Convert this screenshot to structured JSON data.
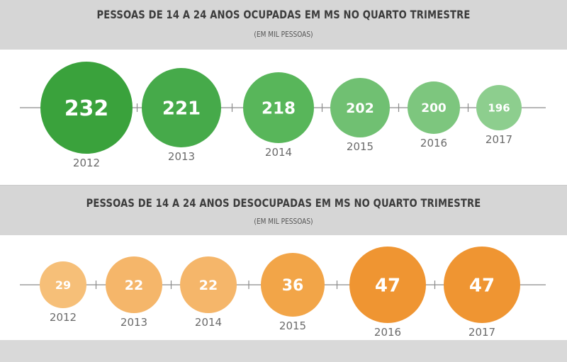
{
  "chart_data": [
    {
      "type": "bubble",
      "title": "PESSOAS DE 14 A 24 ANOS OCUPADAS EM MS NO QUARTO TRIMESTRE",
      "subtitle": "(EM MIL PESSOAS)",
      "categories": [
        "2012",
        "2013",
        "2014",
        "2015",
        "2016",
        "2017"
      ],
      "values": [
        232,
        221,
        218,
        202,
        200,
        196
      ],
      "colors": [
        "#3aa23c",
        "#46aa4a",
        "#58b65a",
        "#70c072",
        "#7dc67e",
        "#8dce8e"
      ]
    },
    {
      "type": "bubble",
      "title": "PESSOAS DE 14 A 24 ANOS DESOCUPADAS EM MS NO QUARTO TRIMESTRE",
      "subtitle": "(EM MIL PESSOAS)",
      "categories": [
        "2012",
        "2013",
        "2014",
        "2015",
        "2016",
        "2017"
      ],
      "values": [
        29,
        22,
        22,
        36,
        47,
        47
      ],
      "colors": [
        "#f6bf78",
        "#f5b66a",
        "#f5b66a",
        "#f2a548",
        "#ef9532",
        "#ef9532"
      ]
    }
  ]
}
